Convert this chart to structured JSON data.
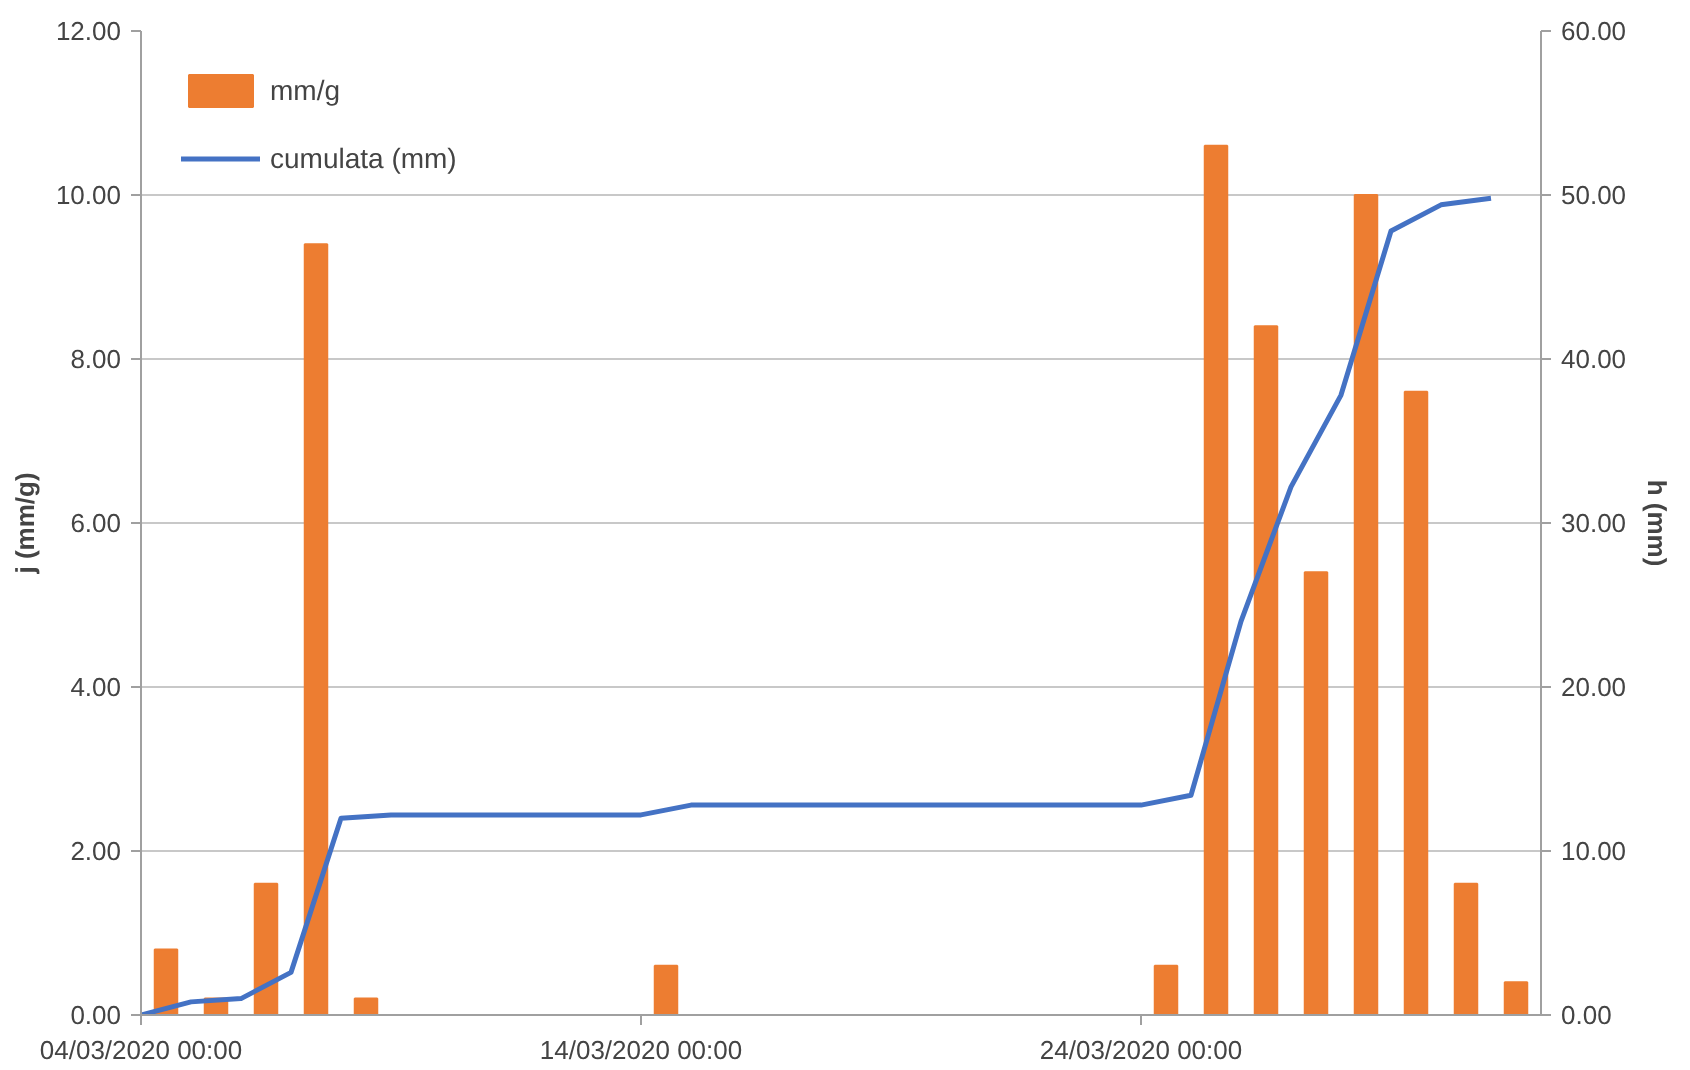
{
  "chart_data": {
    "type": "bar",
    "ylabel": "j (mm/g)",
    "y2label": "h (mm)",
    "xlim": [
      "2020-03-04",
      "2020-04-01"
    ],
    "xticks": [
      {
        "value": "2020-03-04",
        "label": "04/03/2020 00:00"
      },
      {
        "value": "2020-03-14",
        "label": "14/03/2020 00:00"
      },
      {
        "value": "2020-03-24",
        "label": "24/03/2020 00:00"
      }
    ],
    "ylim": [
      0,
      12
    ],
    "yticks": [
      {
        "value": 0,
        "label": "0.00"
      },
      {
        "value": 2,
        "label": "2.00"
      },
      {
        "value": 4,
        "label": "4.00"
      },
      {
        "value": 6,
        "label": "6.00"
      },
      {
        "value": 8,
        "label": "8.00"
      },
      {
        "value": 10,
        "label": "10.00"
      },
      {
        "value": 12,
        "label": "12.00"
      }
    ],
    "y2lim": [
      0,
      60
    ],
    "y2ticks": [
      {
        "value": 0,
        "label": "0.00"
      },
      {
        "value": 10,
        "label": "10.00"
      },
      {
        "value": 20,
        "label": "20.00"
      },
      {
        "value": 30,
        "label": "30.00"
      },
      {
        "value": 40,
        "label": "40.00"
      },
      {
        "value": 50,
        "label": "50.00"
      },
      {
        "value": 60,
        "label": "60.00"
      }
    ],
    "grid": "y",
    "legend": "top left",
    "series": [
      {
        "name": "mm/g",
        "color": "#ed7d31",
        "x": [
          "2020-03-04T12:00",
          "2020-03-05T12:00",
          "2020-03-06T12:00",
          "2020-03-07T12:00",
          "2020-03-08T12:00",
          "2020-03-09T12:00",
          "2020-03-10T12:00",
          "2020-03-11T12:00",
          "2020-03-12T12:00",
          "2020-03-13T12:00",
          "2020-03-14T12:00",
          "2020-03-15T12:00",
          "2020-03-16T12:00",
          "2020-03-17T12:00",
          "2020-03-18T12:00",
          "2020-03-19T12:00",
          "2020-03-20T12:00",
          "2020-03-21T12:00",
          "2020-03-22T12:00",
          "2020-03-23T12:00",
          "2020-03-24T12:00",
          "2020-03-25T12:00",
          "2020-03-26T12:00",
          "2020-03-27T12:00",
          "2020-03-28T12:00",
          "2020-03-29T12:00",
          "2020-03-30T12:00",
          "2020-03-31T12:00"
        ],
        "values": [
          0.8,
          0.2,
          1.6,
          9.4,
          0.2,
          0,
          0,
          0,
          0,
          0,
          0.6,
          0,
          0,
          0,
          0,
          0,
          0,
          0,
          0,
          0,
          0.6,
          10.6,
          8.4,
          5.4,
          10.0,
          7.6,
          1.6,
          0.4
        ]
      },
      {
        "name": "cumulata (mm)",
        "type": "line",
        "axis": "y2",
        "color": "#4472c4",
        "x": [
          "2020-03-04",
          "2020-03-05",
          "2020-03-06",
          "2020-03-07",
          "2020-03-08",
          "2020-03-09",
          "2020-03-10",
          "2020-03-11",
          "2020-03-12",
          "2020-03-13",
          "2020-03-14",
          "2020-03-15",
          "2020-03-16",
          "2020-03-17",
          "2020-03-18",
          "2020-03-19",
          "2020-03-20",
          "2020-03-21",
          "2020-03-22",
          "2020-03-23",
          "2020-03-24",
          "2020-03-25",
          "2020-03-26",
          "2020-03-27",
          "2020-03-28",
          "2020-03-29",
          "2020-03-30",
          "2020-03-31"
        ],
        "values": [
          0,
          0.8,
          1.0,
          2.6,
          12.0,
          12.2,
          12.2,
          12.2,
          12.2,
          12.2,
          12.2,
          12.8,
          12.8,
          12.8,
          12.8,
          12.8,
          12.8,
          12.8,
          12.8,
          12.8,
          12.8,
          13.4,
          24.0,
          32.2,
          37.8,
          47.8,
          49.4,
          49.8
        ]
      }
    ]
  }
}
